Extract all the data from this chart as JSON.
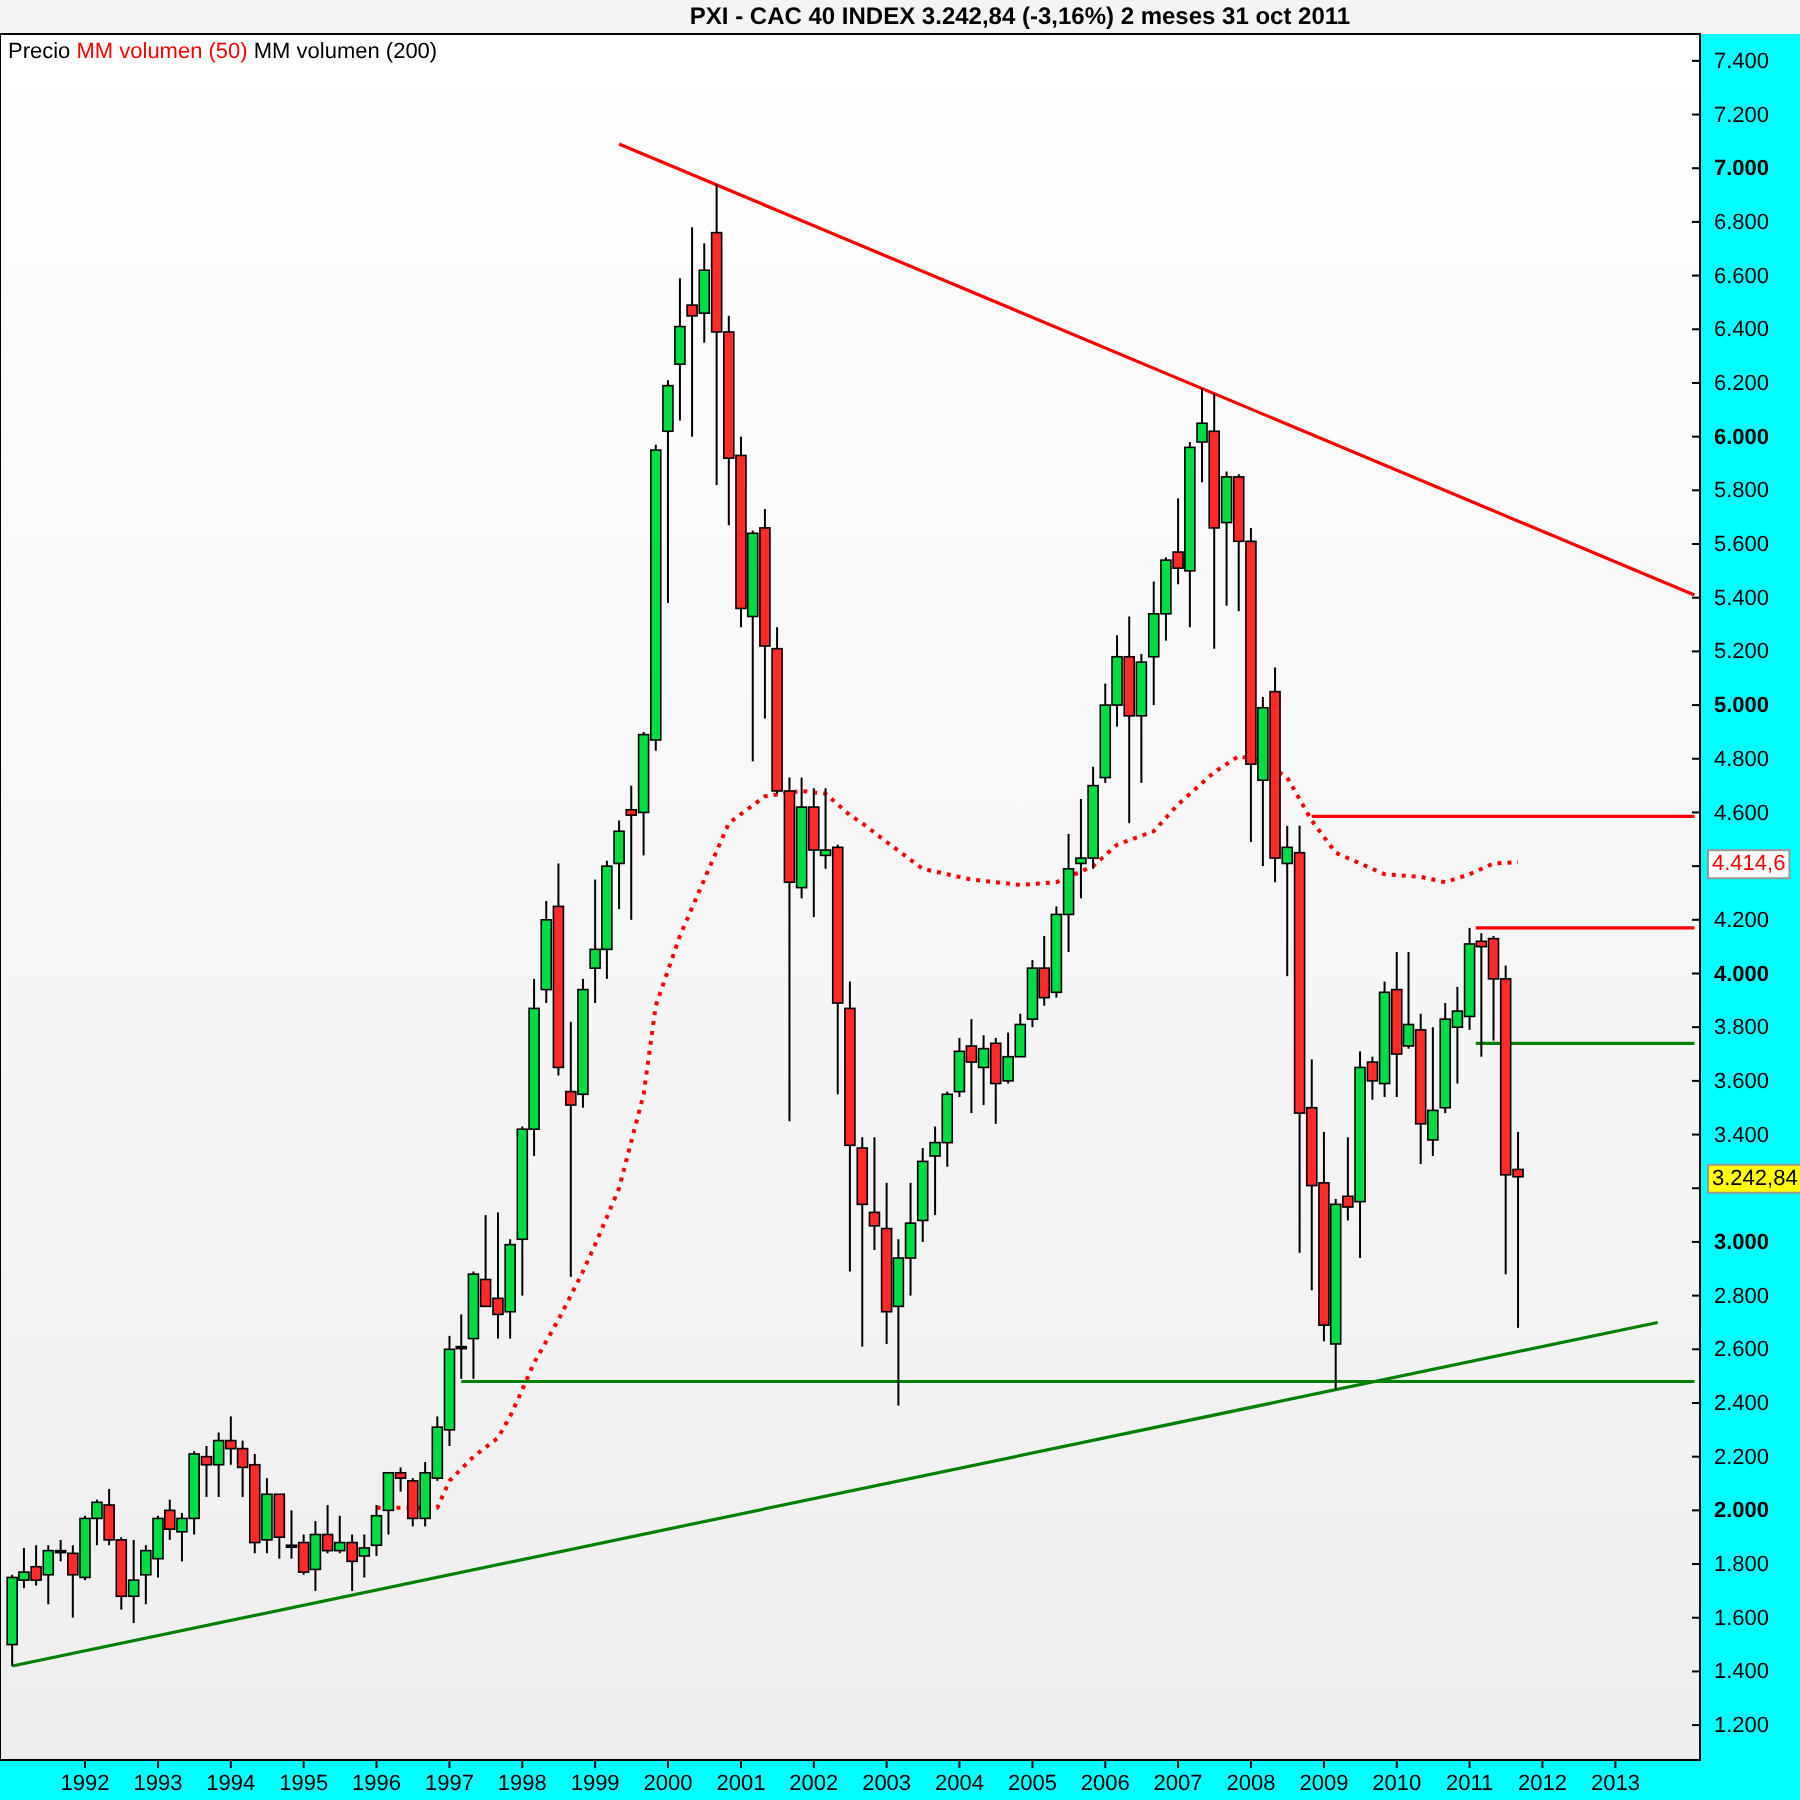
{
  "chart_data": {
    "type": "candlestick",
    "title": "PXI - CAC 40 INDEX    3.242,84 (-3,16%)    2 meses  31 oct 2011",
    "xlim": [
      "1990-11",
      "2014-03"
    ],
    "xticks": [
      "1992",
      "1993",
      "1994",
      "1995",
      "1996",
      "1997",
      "1998",
      "1999",
      "2000",
      "2001",
      "2002",
      "2003",
      "2004",
      "2005",
      "2006",
      "2007",
      "2008",
      "2009",
      "2010",
      "2011",
      "2012",
      "2013"
    ],
    "ylim": [
      1070,
      7500
    ],
    "yticks": [
      {
        "value": 1200,
        "label": "1.200"
      },
      {
        "value": 1400,
        "label": "1.400"
      },
      {
        "value": 1600,
        "label": "1.600"
      },
      {
        "value": 1800,
        "label": "1.800"
      },
      {
        "value": 2000,
        "label": "2.000"
      },
      {
        "value": 2200,
        "label": "2.200"
      },
      {
        "value": 2400,
        "label": "2.400"
      },
      {
        "value": 2600,
        "label": "2.600"
      },
      {
        "value": 2800,
        "label": "2.800"
      },
      {
        "value": 3000,
        "label": "3.000"
      },
      {
        "value": 3200,
        "label": null
      },
      {
        "value": 3400,
        "label": "3.400"
      },
      {
        "value": 3600,
        "label": "3.600"
      },
      {
        "value": 3800,
        "label": "3.800"
      },
      {
        "value": 4000,
        "label": "4.000"
      },
      {
        "value": 4200,
        "label": "4.200"
      },
      {
        "value": 4400,
        "label": null
      },
      {
        "value": 4600,
        "label": "4.600"
      },
      {
        "value": 4800,
        "label": "4.800"
      },
      {
        "value": 5000,
        "label": "5.000"
      },
      {
        "value": 5200,
        "label": "5.200"
      },
      {
        "value": 5400,
        "label": "5.400"
      },
      {
        "value": 5600,
        "label": "5.600"
      },
      {
        "value": 5800,
        "label": "5.800"
      },
      {
        "value": 6000,
        "label": "6.000"
      },
      {
        "value": 6200,
        "label": "6.200"
      },
      {
        "value": 6400,
        "label": "6.400"
      },
      {
        "value": 6600,
        "label": "6.600"
      },
      {
        "value": 6800,
        "label": "6.800"
      },
      {
        "value": 7000,
        "label": "7.000"
      },
      {
        "value": 7200,
        "label": "7.200"
      },
      {
        "value": 7400,
        "label": "7.400"
      }
    ],
    "grid": false,
    "legend": "top left",
    "marker": "none",
    "annotations": [
      "Precio",
      "MM volumen (200)",
      "4.414,6",
      "3.242,84"
    ],
    "x": [
      "1991-01",
      "1991-03",
      "1991-05",
      "1991-07",
      "1991-09",
      "1991-11",
      "1992-01",
      "1992-03",
      "1992-05",
      "1992-07",
      "1992-09",
      "1992-11",
      "1993-01",
      "1993-03",
      "1993-05",
      "1993-07",
      "1993-09",
      "1993-11",
      "1994-01",
      "1994-03",
      "1994-05",
      "1994-07",
      "1994-09",
      "1994-11",
      "1995-01",
      "1995-03",
      "1995-05",
      "1995-07",
      "1995-09",
      "1995-11",
      "1996-01",
      "1996-03",
      "1996-05",
      "1996-07",
      "1996-09",
      "1996-11",
      "1997-01",
      "1997-03",
      "1997-05",
      "1997-07",
      "1997-09",
      "1997-11",
      "1998-01",
      "1998-03",
      "1998-05",
      "1998-07",
      "1998-09",
      "1998-11",
      "1999-01",
      "1999-03",
      "1999-05",
      "1999-07",
      "1999-09",
      "1999-11",
      "2000-01",
      "2000-03",
      "2000-05",
      "2000-07",
      "2000-09",
      "2000-11",
      "2001-01",
      "2001-03",
      "2001-05",
      "2001-07",
      "2001-09",
      "2001-11",
      "2002-01",
      "2002-03",
      "2002-05",
      "2002-07",
      "2002-09",
      "2002-11",
      "2003-01",
      "2003-03",
      "2003-05",
      "2003-07",
      "2003-09",
      "2003-11",
      "2004-01",
      "2004-03",
      "2004-05",
      "2004-07",
      "2004-09",
      "2004-11",
      "2005-01",
      "2005-03",
      "2005-05",
      "2005-07",
      "2005-09",
      "2005-11",
      "2006-01",
      "2006-03",
      "2006-05",
      "2006-07",
      "2006-09",
      "2006-11",
      "2007-01",
      "2007-03",
      "2007-05",
      "2007-07",
      "2007-09",
      "2007-11",
      "2008-01",
      "2008-03",
      "2008-05",
      "2008-07",
      "2008-09",
      "2008-11",
      "2009-01",
      "2009-03",
      "2009-05",
      "2009-07",
      "2009-09",
      "2009-11",
      "2010-01",
      "2010-03",
      "2010-05",
      "2010-07",
      "2010-09",
      "2010-11",
      "2011-01",
      "2011-03",
      "2011-05",
      "2011-07",
      "2011-09"
    ],
    "ohlc": [
      [
        1500,
        1760,
        1420,
        1750
      ],
      [
        1740,
        1860,
        1710,
        1770
      ],
      [
        1790,
        1870,
        1720,
        1740
      ],
      [
        1760,
        1870,
        1650,
        1850
      ],
      [
        1850,
        1890,
        1810,
        1850
      ],
      [
        1840,
        1870,
        1600,
        1760
      ],
      [
        1750,
        1980,
        1740,
        1970
      ],
      [
        1970,
        2040,
        1870,
        2030
      ],
      [
        2020,
        2080,
        1870,
        1890
      ],
      [
        1890,
        1900,
        1630,
        1680
      ],
      [
        1680,
        1890,
        1580,
        1740
      ],
      [
        1760,
        1870,
        1650,
        1850
      ],
      [
        1820,
        1980,
        1750,
        1970
      ],
      [
        2000,
        2040,
        1890,
        1930
      ],
      [
        1920,
        1990,
        1810,
        1970
      ],
      [
        1970,
        2220,
        1910,
        2210
      ],
      [
        2200,
        2240,
        2050,
        2170
      ],
      [
        2170,
        2290,
        2050,
        2260
      ],
      [
        2260,
        2350,
        2170,
        2230
      ],
      [
        2230,
        2260,
        2050,
        2160
      ],
      [
        2170,
        2210,
        1840,
        1880
      ],
      [
        1890,
        2120,
        1840,
        2060
      ],
      [
        2060,
        2060,
        1820,
        1900
      ],
      [
        1870,
        2000,
        1820,
        1870
      ],
      [
        1880,
        1910,
        1760,
        1770
      ],
      [
        1780,
        1960,
        1700,
        1910
      ],
      [
        1910,
        2020,
        1840,
        1850
      ],
      [
        1850,
        1980,
        1840,
        1880
      ],
      [
        1880,
        1910,
        1700,
        1810
      ],
      [
        1830,
        1910,
        1750,
        1860
      ],
      [
        1870,
        2020,
        1830,
        1980
      ],
      [
        2000,
        2140,
        1910,
        2140
      ],
      [
        2140,
        2160,
        2070,
        2120
      ],
      [
        2110,
        2120,
        1940,
        1970
      ],
      [
        1970,
        2180,
        1940,
        2140
      ],
      [
        2120,
        2350,
        2110,
        2310
      ],
      [
        2300,
        2650,
        2240,
        2600
      ],
      [
        2610,
        2730,
        2490,
        2610
      ],
      [
        2640,
        2890,
        2490,
        2880
      ],
      [
        2860,
        3100,
        2760,
        2760
      ],
      [
        2790,
        3110,
        2640,
        2730
      ],
      [
        2740,
        3010,
        2640,
        2990
      ],
      [
        3010,
        3430,
        2800,
        3420
      ],
      [
        3420,
        3980,
        3320,
        3870
      ],
      [
        3940,
        4270,
        3890,
        4200
      ],
      [
        4250,
        4410,
        3620,
        3650
      ],
      [
        3560,
        3820,
        2870,
        3510
      ],
      [
        3550,
        3980,
        3500,
        3940
      ],
      [
        4020,
        4350,
        3890,
        4090
      ],
      [
        4090,
        4420,
        3980,
        4400
      ],
      [
        4410,
        4570,
        4240,
        4530
      ],
      [
        4610,
        4700,
        4200,
        4590
      ],
      [
        4600,
        4900,
        4440,
        4890
      ],
      [
        4870,
        5970,
        4830,
        5950
      ],
      [
        6020,
        6210,
        5380,
        6190
      ],
      [
        6270,
        6590,
        6060,
        6410
      ],
      [
        6490,
        6780,
        6000,
        6450
      ],
      [
        6460,
        6720,
        6350,
        6620
      ],
      [
        6760,
        6940,
        5820,
        6390
      ],
      [
        6390,
        6450,
        5670,
        5920
      ],
      [
        5930,
        6000,
        5290,
        5360
      ],
      [
        5330,
        5650,
        4790,
        5640
      ],
      [
        5660,
        5730,
        4950,
        5220
      ],
      [
        5210,
        5290,
        4670,
        4680
      ],
      [
        4680,
        4730,
        3450,
        4340
      ],
      [
        4320,
        4730,
        4280,
        4620
      ],
      [
        4620,
        4690,
        4210,
        4460
      ],
      [
        4440,
        4690,
        4390,
        4460
      ],
      [
        4470,
        4480,
        3550,
        3890
      ],
      [
        3870,
        3970,
        2890,
        3360
      ],
      [
        3350,
        3390,
        2610,
        3140
      ],
      [
        3110,
        3390,
        2970,
        3060
      ],
      [
        3050,
        3220,
        2620,
        2740
      ],
      [
        2760,
        3010,
        2390,
        2940
      ],
      [
        2940,
        3220,
        2800,
        3070
      ],
      [
        3080,
        3350,
        3000,
        3300
      ],
      [
        3320,
        3430,
        3100,
        3370
      ],
      [
        3370,
        3560,
        3280,
        3550
      ],
      [
        3560,
        3760,
        3540,
        3710
      ],
      [
        3730,
        3830,
        3480,
        3670
      ],
      [
        3650,
        3770,
        3510,
        3720
      ],
      [
        3740,
        3760,
        3440,
        3590
      ],
      [
        3600,
        3780,
        3590,
        3690
      ],
      [
        3690,
        3850,
        3690,
        3810
      ],
      [
        3830,
        4050,
        3800,
        4020
      ],
      [
        4020,
        4140,
        3880,
        3910
      ],
      [
        3930,
        4250,
        3910,
        4220
      ],
      [
        4220,
        4520,
        4080,
        4390
      ],
      [
        4410,
        4650,
        4280,
        4430
      ],
      [
        4430,
        4770,
        4390,
        4700
      ],
      [
        4730,
        5080,
        4710,
        5000
      ],
      [
        5000,
        5260,
        4920,
        5180
      ],
      [
        5180,
        5330,
        4560,
        4960
      ],
      [
        4960,
        5190,
        4710,
        5160
      ],
      [
        5180,
        5460,
        5000,
        5340
      ],
      [
        5340,
        5550,
        5240,
        5540
      ],
      [
        5570,
        5770,
        5450,
        5510
      ],
      [
        5500,
        5980,
        5290,
        5960
      ],
      [
        5980,
        6180,
        5830,
        6050
      ],
      [
        6020,
        6160,
        5210,
        5660
      ],
      [
        5680,
        5870,
        5370,
        5850
      ],
      [
        5850,
        5860,
        5350,
        5610
      ],
      [
        5610,
        5660,
        4490,
        4780
      ],
      [
        4720,
        5030,
        4400,
        4990
      ],
      [
        5050,
        5140,
        4340,
        4430
      ],
      [
        4410,
        4550,
        3990,
        4470
      ],
      [
        4450,
        4550,
        2960,
        3480
      ],
      [
        3500,
        3680,
        2820,
        3210
      ],
      [
        3220,
        3410,
        2630,
        2690
      ],
      [
        2620,
        3160,
        2450,
        3140
      ],
      [
        3170,
        3390,
        3080,
        3130
      ],
      [
        3150,
        3710,
        2940,
        3650
      ],
      [
        3670,
        3690,
        3530,
        3600
      ],
      [
        3590,
        3970,
        3540,
        3930
      ],
      [
        3940,
        4080,
        3540,
        3700
      ],
      [
        3730,
        4080,
        3720,
        3810
      ],
      [
        3790,
        3850,
        3290,
        3440
      ],
      [
        3380,
        3800,
        3320,
        3490
      ],
      [
        3500,
        3890,
        3480,
        3830
      ],
      [
        3800,
        3950,
        3590,
        3860
      ],
      [
        3840,
        4170,
        3790,
        4110
      ],
      [
        4120,
        4150,
        3690,
        4100
      ],
      [
        4130,
        4140,
        3750,
        3980
      ],
      [
        3980,
        4030,
        2880,
        3250
      ],
      [
        3270,
        3410,
        2680,
        3242.84
      ]
    ],
    "colors": [
      "#00dd44",
      "#00dd44",
      "#ff2a2a",
      "#00dd44",
      "#000000",
      "#ff2a2a",
      "#00dd44",
      "#00dd44",
      "#ff2a2a",
      "#ff2a2a",
      "#00dd44",
      "#00dd44",
      "#00dd44",
      "#ff2a2a",
      "#00dd44",
      "#00dd44",
      "#ff2a2a",
      "#00dd44",
      "#ff2a2a",
      "#ff2a2a",
      "#ff2a2a",
      "#00dd44",
      "#ff2a2a",
      "#000000",
      "#ff2a2a",
      "#00dd44",
      "#ff2a2a",
      "#00dd44",
      "#ff2a2a",
      "#00dd44",
      "#00dd44",
      "#00dd44",
      "#ff2a2a",
      "#ff2a2a",
      "#00dd44",
      "#00dd44",
      "#00dd44",
      "#000000",
      "#00dd44",
      "#ff2a2a",
      "#ff2a2a",
      "#00dd44",
      "#00dd44",
      "#00dd44",
      "#00dd44",
      "#ff2a2a",
      "#ff2a2a",
      "#00dd44",
      "#00dd44",
      "#00dd44",
      "#00dd44",
      "#ff2a2a",
      "#00dd44",
      "#00dd44",
      "#00dd44",
      "#00dd44",
      "#ff2a2a",
      "#00dd44",
      "#ff2a2a",
      "#ff2a2a",
      "#ff2a2a",
      "#00dd44",
      "#ff2a2a",
      "#ff2a2a",
      "#ff2a2a",
      "#00dd44",
      "#ff2a2a",
      "#00dd44",
      "#ff2a2a",
      "#ff2a2a",
      "#ff2a2a",
      "#ff2a2a",
      "#ff2a2a",
      "#00dd44",
      "#00dd44",
      "#00dd44",
      "#00dd44",
      "#00dd44",
      "#00dd44",
      "#ff2a2a",
      "#00dd44",
      "#ff2a2a",
      "#00dd44",
      "#00dd44",
      "#00dd44",
      "#ff2a2a",
      "#00dd44",
      "#00dd44",
      "#00dd44",
      "#00dd44",
      "#00dd44",
      "#00dd44",
      "#ff2a2a",
      "#00dd44",
      "#00dd44",
      "#00dd44",
      "#ff2a2a",
      "#00dd44",
      "#00dd44",
      "#ff2a2a",
      "#00dd44",
      "#ff2a2a",
      "#ff2a2a",
      "#00dd44",
      "#ff2a2a",
      "#00dd44",
      "#ff2a2a",
      "#ff2a2a",
      "#ff2a2a",
      "#00dd44",
      "#ff2a2a",
      "#00dd44",
      "#ff2a2a",
      "#00dd44",
      "#ff2a2a",
      "#00dd44",
      "#ff2a2a",
      "#00dd44",
      "#00dd44",
      "#00dd44",
      "#00dd44",
      "#ff2a2a",
      "#ff2a2a",
      "#ff2a2a",
      "#ff2a2a"
    ],
    "series": [
      {
        "type": "line",
        "name": "MM volumen (50)",
        "color": "#ff0000",
        "line_style": "dotted",
        "x": [
          "1996-01",
          "1996-11",
          "1997-01",
          "1997-05",
          "1997-09",
          "1997-11",
          "1998-01",
          "1998-03",
          "1998-05",
          "1998-07",
          "1998-09",
          "1998-11",
          "1999-01",
          "1999-05",
          "1999-09",
          "1999-11",
          "2000-03",
          "2000-07",
          "2000-11",
          "2001-05",
          "2001-11",
          "2002-03",
          "2002-07",
          "2002-09",
          "2003-01",
          "2003-07",
          "2004-03",
          "2004-11",
          "2005-05",
          "2005-11",
          "2006-03",
          "2006-09",
          "2007-01",
          "2007-07",
          "2007-11",
          "2008-03",
          "2008-07",
          "2008-11",
          "2009-03",
          "2009-11",
          "2010-05",
          "2010-09",
          "2011-01",
          "2011-05",
          "2011-09"
        ],
        "values": [
          2010,
          2010,
          2110,
          2200,
          2270,
          2350,
          2450,
          2550,
          2630,
          2710,
          2800,
          2890,
          2990,
          3200,
          3550,
          3880,
          4140,
          4350,
          4560,
          4660,
          4680,
          4670,
          4590,
          4560,
          4490,
          4390,
          4350,
          4330,
          4340,
          4400,
          4480,
          4530,
          4630,
          4750,
          4810,
          4790,
          4730,
          4570,
          4450,
          4370,
          4360,
          4340,
          4370,
          4410,
          4414.6
        ]
      },
      {
        "type": "line",
        "color": "#ff0000",
        "x": [
          "1999-05",
          "2014-02"
        ],
        "values": [
          7090,
          5410
        ]
      },
      {
        "type": "line",
        "color": "#008000",
        "x": [
          "1991-01",
          "2013-08"
        ],
        "values": [
          1420,
          2700
        ]
      },
      {
        "type": "line",
        "color": "#008000",
        "x": [
          "1997-03",
          "2014-02"
        ],
        "values": [
          2480,
          2480
        ]
      },
      {
        "type": "line",
        "color": "#ff0000",
        "x": [
          "2008-11",
          "2014-02"
        ],
        "values": [
          4585,
          4585
        ]
      },
      {
        "type": "line",
        "color": "#ff0000",
        "x": [
          "2011-02",
          "2014-02"
        ],
        "values": [
          4170,
          4170
        ]
      },
      {
        "type": "line",
        "color": "#008000",
        "x": [
          "2011-02",
          "2014-02"
        ],
        "values": [
          3740,
          3740
        ]
      }
    ]
  }
}
